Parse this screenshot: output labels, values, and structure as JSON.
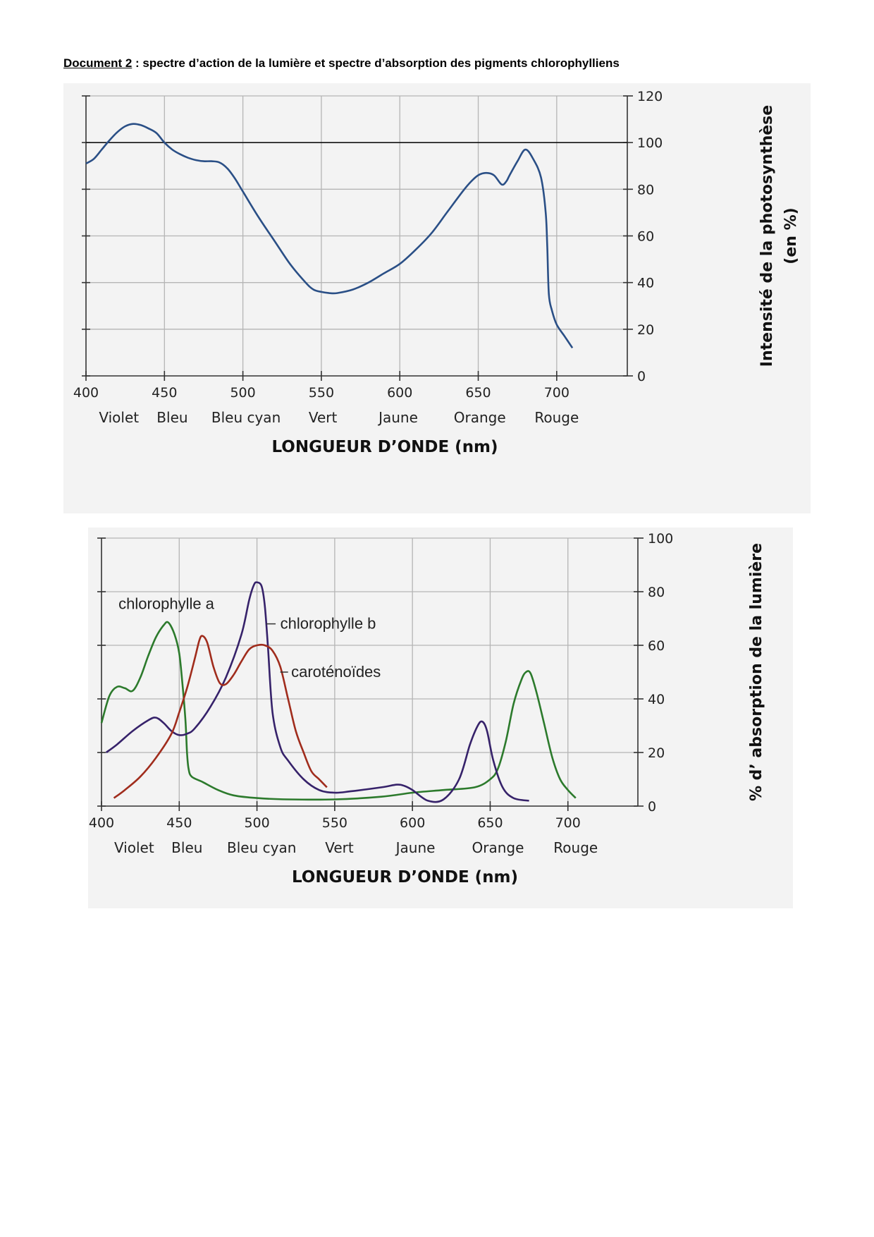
{
  "document": {
    "label": "Document 2",
    "separator": " : ",
    "title": "spectre d’action de la lumière et spectre d’absorption des pigments chlorophylliens"
  },
  "chart_data": [
    {
      "id": "action-spectrum",
      "type": "line",
      "title": "",
      "xlabel": "LONGUEUR D’ONDE (nm)",
      "ylabel_lines": [
        "Intensité de la photosynthèse",
        "(en %)"
      ],
      "xlim": [
        400,
        745
      ],
      "ylim": [
        0,
        120
      ],
      "xticks": [
        400,
        450,
        500,
        550,
        600,
        650,
        700
      ],
      "yticks": [
        0,
        20,
        40,
        60,
        80,
        100,
        120
      ],
      "bands": [
        {
          "label": "Violet",
          "x": 421
        },
        {
          "label": "Bleu",
          "x": 455
        },
        {
          "label": "Bleu cyan",
          "x": 502
        },
        {
          "label": "Vert",
          "x": 551
        },
        {
          "label": "Jaune",
          "x": 599
        },
        {
          "label": "Orange",
          "x": 651
        },
        {
          "label": "Rouge",
          "x": 700
        }
      ],
      "reference_line": 100,
      "grid": true,
      "series": [
        {
          "name": "Intensité de la photosynthèse",
          "color": "#2a4f86",
          "x": [
            400,
            405,
            410,
            415,
            420,
            425,
            430,
            435,
            440,
            445,
            450,
            455,
            460,
            465,
            470,
            475,
            480,
            485,
            490,
            495,
            500,
            510,
            520,
            530,
            540,
            545,
            550,
            555,
            560,
            570,
            580,
            590,
            600,
            610,
            620,
            630,
            640,
            645,
            650,
            655,
            660,
            665,
            668,
            670,
            675,
            680,
            685,
            690,
            693,
            694,
            695,
            697,
            700,
            705,
            710
          ],
          "y": [
            91,
            93,
            97,
            101,
            104.5,
            107,
            108,
            107.5,
            106,
            104,
            100,
            97,
            95,
            93.5,
            92.5,
            92,
            92,
            91.5,
            89,
            84.5,
            79,
            68,
            58,
            48,
            40,
            37,
            36,
            35.5,
            35.5,
            37,
            40,
            44,
            48,
            54,
            61,
            70,
            79,
            83,
            86,
            87,
            86,
            82,
            83.5,
            86,
            92,
            97,
            93,
            85,
            70,
            55,
            35,
            28,
            22,
            17,
            12
          ]
        }
      ]
    },
    {
      "id": "absorption-spectrum",
      "type": "line",
      "title": "",
      "xlabel": "LONGUEUR D’ONDE (nm)",
      "ylabel": "% d’ absorption de la lumière",
      "xlim": [
        400,
        745
      ],
      "ylim": [
        0,
        100
      ],
      "xticks": [
        400,
        450,
        500,
        550,
        600,
        650,
        700
      ],
      "yticks": [
        0,
        20,
        40,
        60,
        80,
        100
      ],
      "bands": [
        {
          "label": "Violet",
          "x": 421
        },
        {
          "label": "Bleu",
          "x": 455
        },
        {
          "label": "Bleu cyan",
          "x": 503
        },
        {
          "label": "Vert",
          "x": 553
        },
        {
          "label": "Jaune",
          "x": 602
        },
        {
          "label": "Orange",
          "x": 655
        },
        {
          "label": "Rouge",
          "x": 705
        }
      ],
      "grid": true,
      "series": [
        {
          "name": "chlorophylle a",
          "color": "#2c7a2c",
          "x": [
            400,
            405,
            410,
            415,
            420,
            425,
            430,
            435,
            440,
            443,
            447,
            450,
            452,
            454,
            455,
            456,
            458,
            465,
            475,
            485,
            500,
            520,
            550,
            580,
            600,
            620,
            640,
            650,
            655,
            660,
            665,
            670,
            673,
            676,
            680,
            685,
            690,
            695,
            700,
            705
          ],
          "y": [
            31,
            41,
            44.5,
            44,
            43,
            48,
            56,
            63,
            67.5,
            68.5,
            64,
            57,
            46,
            32,
            20,
            14,
            11,
            9,
            6,
            4,
            3,
            2.5,
            2.5,
            3.5,
            5,
            6,
            7,
            10,
            14,
            24,
            38,
            47,
            50,
            49.5,
            42,
            30,
            18,
            10,
            6,
            3
          ]
        },
        {
          "name": "chlorophylle b",
          "color": "#36226a",
          "x": [
            403,
            410,
            420,
            430,
            435,
            440,
            445,
            450,
            455,
            460,
            470,
            480,
            490,
            495,
            498,
            500,
            503,
            505,
            507,
            510,
            515,
            520,
            530,
            540,
            550,
            560,
            580,
            590,
            595,
            600,
            610,
            620,
            630,
            637,
            642,
            645,
            648,
            652,
            658,
            665,
            675
          ],
          "y": [
            20,
            23,
            28,
            32,
            33,
            31,
            28,
            26.5,
            27,
            29,
            37,
            48,
            64,
            77,
            82.5,
            83.5,
            82,
            75,
            60,
            35,
            22,
            17,
            10,
            6,
            5,
            5.5,
            7,
            8,
            7.5,
            6,
            2,
            2.5,
            10,
            23,
            30,
            31.5,
            28,
            17,
            7,
            3,
            2
          ]
        },
        {
          "name": "caroténoïdes",
          "color": "#a02c1c",
          "x": [
            408,
            415,
            425,
            435,
            445,
            450,
            455,
            460,
            463,
            465,
            468,
            472,
            476,
            480,
            485,
            490,
            495,
            500,
            505,
            510,
            515,
            520,
            525,
            530,
            535,
            540,
            545
          ],
          "y": [
            3,
            6,
            11,
            18,
            27,
            35,
            44,
            55,
            62,
            63.5,
            61,
            52,
            46,
            45.5,
            49,
            54,
            58.5,
            60,
            60,
            58,
            52,
            40,
            28,
            20,
            13,
            10,
            7
          ]
        }
      ],
      "annotations": [
        {
          "label": "chlorophylle a",
          "target": "chlorophylle a"
        },
        {
          "label": "chlorophylle b",
          "target": "chlorophylle b"
        },
        {
          "label": "caroténoïdes",
          "target": "caroténoïdes"
        }
      ]
    }
  ]
}
